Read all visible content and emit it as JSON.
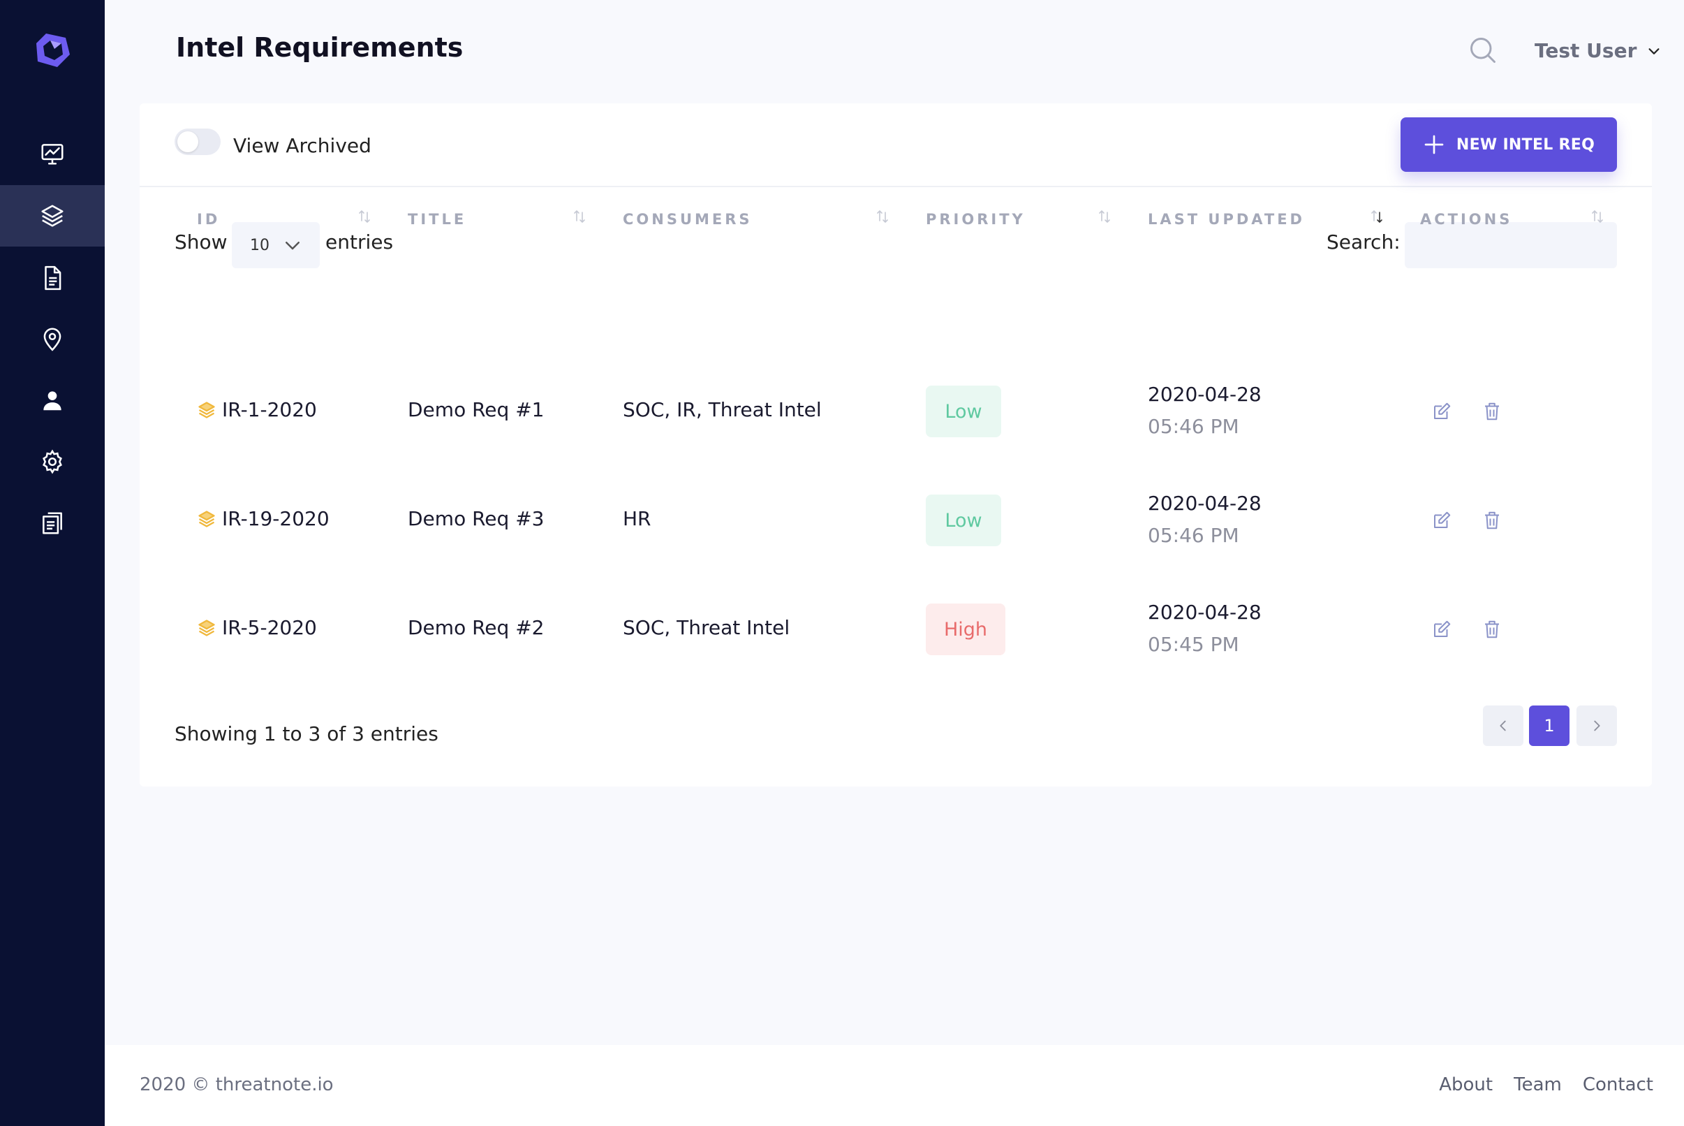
{
  "header": {
    "title": "Intel Requirements",
    "user_name": "Test User"
  },
  "sidebar": {
    "items": [
      {
        "icon": "dashboard-chart-icon",
        "active": false
      },
      {
        "icon": "layers-icon",
        "active": true
      },
      {
        "icon": "document-icon",
        "active": false
      },
      {
        "icon": "location-pin-icon",
        "active": false
      },
      {
        "icon": "users-icon",
        "active": false
      },
      {
        "icon": "gear-icon",
        "active": false
      },
      {
        "icon": "reports-icon",
        "active": false
      }
    ]
  },
  "toolbar": {
    "view_archived_label": "View Archived",
    "view_archived_on": false,
    "new_button_label": "NEW INTEL REQ"
  },
  "table_controls": {
    "show_label": "Show",
    "page_size": "10",
    "entries_label": "entries",
    "search_label": "Search:",
    "search_value": ""
  },
  "table": {
    "columns": [
      "ID",
      "TITLE",
      "CONSUMERS",
      "PRIORITY",
      "LAST UPDATED",
      "ACTIONS"
    ],
    "rows": [
      {
        "id": "IR-1-2020",
        "title": "Demo Req #1",
        "consumers": "SOC, IR, Threat Intel",
        "priority": "Low",
        "date": "2020-04-28",
        "time": "05:46 PM"
      },
      {
        "id": "IR-19-2020",
        "title": "Demo Req #3",
        "consumers": "HR",
        "priority": "Low",
        "date": "2020-04-28",
        "time": "05:46 PM"
      },
      {
        "id": "IR-5-2020",
        "title": "Demo Req #2",
        "consumers": "SOC, Threat Intel",
        "priority": "High",
        "date": "2020-04-28",
        "time": "05:45 PM"
      }
    ]
  },
  "pagination": {
    "summary": "Showing 1 to 3 of 3 entries",
    "current_page": "1"
  },
  "footer": {
    "copyright": "2020 © threatnote.io",
    "links": [
      "About",
      "Team",
      "Contact"
    ]
  },
  "colors": {
    "accent": "#5d4fdc",
    "sidebar_bg": "#0a1133",
    "low": "#5fc9a0",
    "high": "#e86b6b",
    "id_icon": "#f0b83c"
  }
}
